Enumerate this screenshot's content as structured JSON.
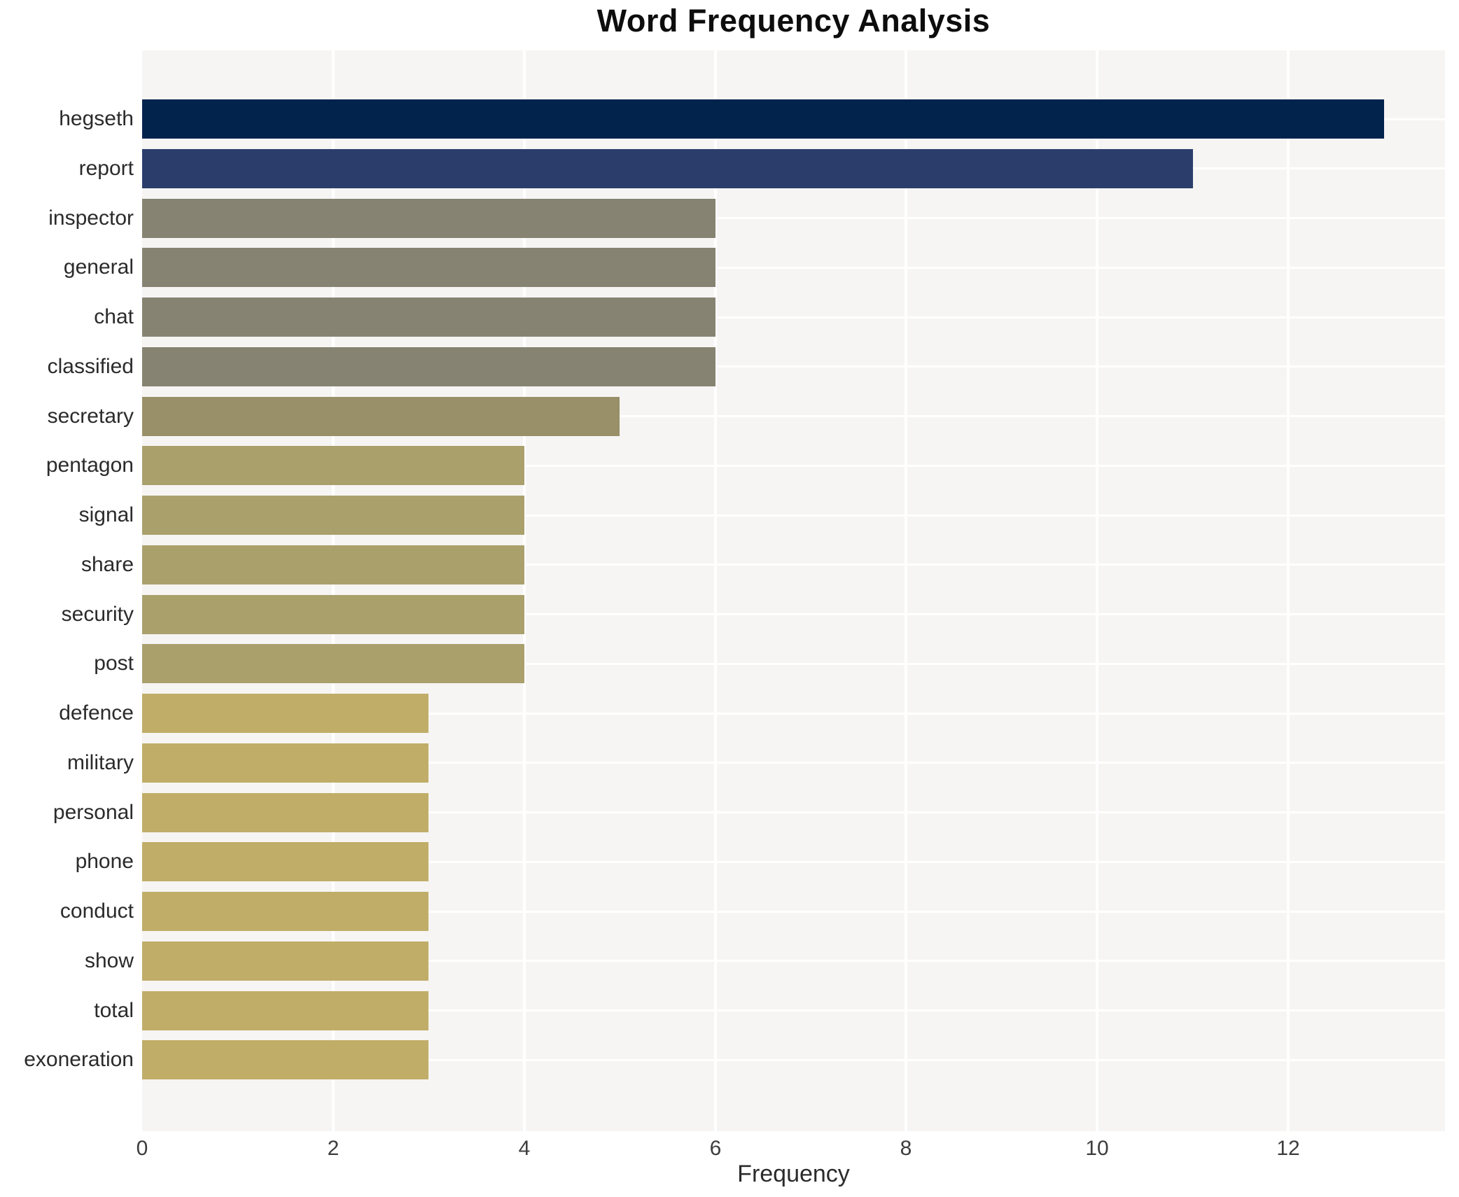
{
  "title": "Word Frequency Analysis",
  "chart_data": {
    "type": "bar",
    "orientation": "horizontal",
    "title": "Word Frequency Analysis",
    "xlabel": "Frequency",
    "ylabel": "",
    "categories": [
      "hegseth",
      "report",
      "inspector",
      "general",
      "chat",
      "classified",
      "secretary",
      "pentagon",
      "signal",
      "share",
      "security",
      "post",
      "defence",
      "military",
      "personal",
      "phone",
      "conduct",
      "show",
      "total",
      "exoneration"
    ],
    "values": [
      13,
      11,
      6,
      6,
      6,
      6,
      5,
      4,
      4,
      4,
      4,
      4,
      3,
      3,
      3,
      3,
      3,
      3,
      3,
      3
    ],
    "bar_colors": [
      "#02234c",
      "#2b3e6b",
      "#878372",
      "#878372",
      "#878372",
      "#878372",
      "#999069",
      "#aaa06c",
      "#aaa06c",
      "#aaa06c",
      "#aaa06c",
      "#aaa06c",
      "#c0ad68",
      "#c0ad68",
      "#c0ad68",
      "#c0ad68",
      "#c0ad68",
      "#c0ad68",
      "#c0ad68",
      "#c0ad68"
    ],
    "xlim": [
      0,
      13.64
    ],
    "xticks": [
      0,
      2,
      4,
      6,
      8,
      10,
      12
    ],
    "grid": true,
    "legend_position": "none",
    "colors": {
      "figure_background": "#ffffff",
      "plot_background": "#f6f5f3",
      "gridline": "#ffffff",
      "tick_text": "#3d3d3d",
      "label_text": "#2b2b2b",
      "title_text": "#0d0d0d"
    }
  }
}
